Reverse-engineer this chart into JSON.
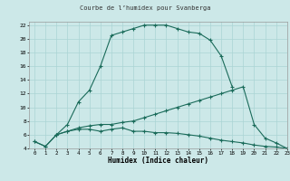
{
  "title": "Courbe de l’humidex pour Svanberga",
  "xlabel": "Humidex (Indice chaleur)",
  "bg_color": "#cce8e8",
  "grid_color": "#aad4d4",
  "line_color": "#1a6b5a",
  "xlim": [
    -0.5,
    23
  ],
  "ylim": [
    4,
    22.5
  ],
  "yticks": [
    4,
    6,
    8,
    10,
    12,
    14,
    16,
    18,
    20,
    22
  ],
  "xticks": [
    0,
    1,
    2,
    3,
    4,
    5,
    6,
    7,
    8,
    9,
    10,
    11,
    12,
    13,
    14,
    15,
    16,
    17,
    18,
    19,
    20,
    21,
    22,
    23
  ],
  "line1_x": [
    0,
    1,
    2,
    3,
    4,
    5,
    6,
    7,
    8,
    9,
    10,
    11,
    12,
    13,
    14,
    15,
    16,
    17,
    18
  ],
  "line1_y": [
    5.0,
    4.3,
    6.0,
    7.5,
    10.8,
    12.5,
    16.0,
    20.5,
    21.0,
    21.5,
    22.0,
    22.0,
    22.0,
    21.5,
    21.0,
    20.8,
    19.8,
    17.5,
    13.0
  ],
  "line2_x": [
    0,
    1,
    2,
    3,
    4,
    5,
    6,
    7,
    8,
    9,
    10,
    11,
    12,
    13,
    14,
    15,
    16,
    17,
    18,
    19,
    20,
    21,
    22,
    23
  ],
  "line2_y": [
    5.0,
    4.3,
    6.0,
    6.5,
    6.8,
    6.8,
    6.5,
    6.8,
    7.0,
    6.5,
    6.5,
    6.3,
    6.3,
    6.2,
    6.0,
    5.8,
    5.5,
    5.2,
    5.0,
    4.8,
    4.5,
    4.3,
    4.2,
    4.0
  ],
  "line3_x": [
    2,
    3,
    4,
    5,
    6,
    7,
    8,
    9,
    10,
    11,
    12,
    13,
    14,
    15,
    16,
    17,
    18,
    19,
    20,
    21,
    22,
    23
  ],
  "line3_y": [
    6.0,
    6.5,
    7.0,
    7.3,
    7.5,
    7.5,
    7.8,
    8.0,
    8.5,
    9.0,
    9.5,
    10.0,
    10.5,
    11.0,
    11.5,
    12.0,
    12.5,
    13.0,
    7.5,
    5.5,
    4.8,
    4.0
  ]
}
